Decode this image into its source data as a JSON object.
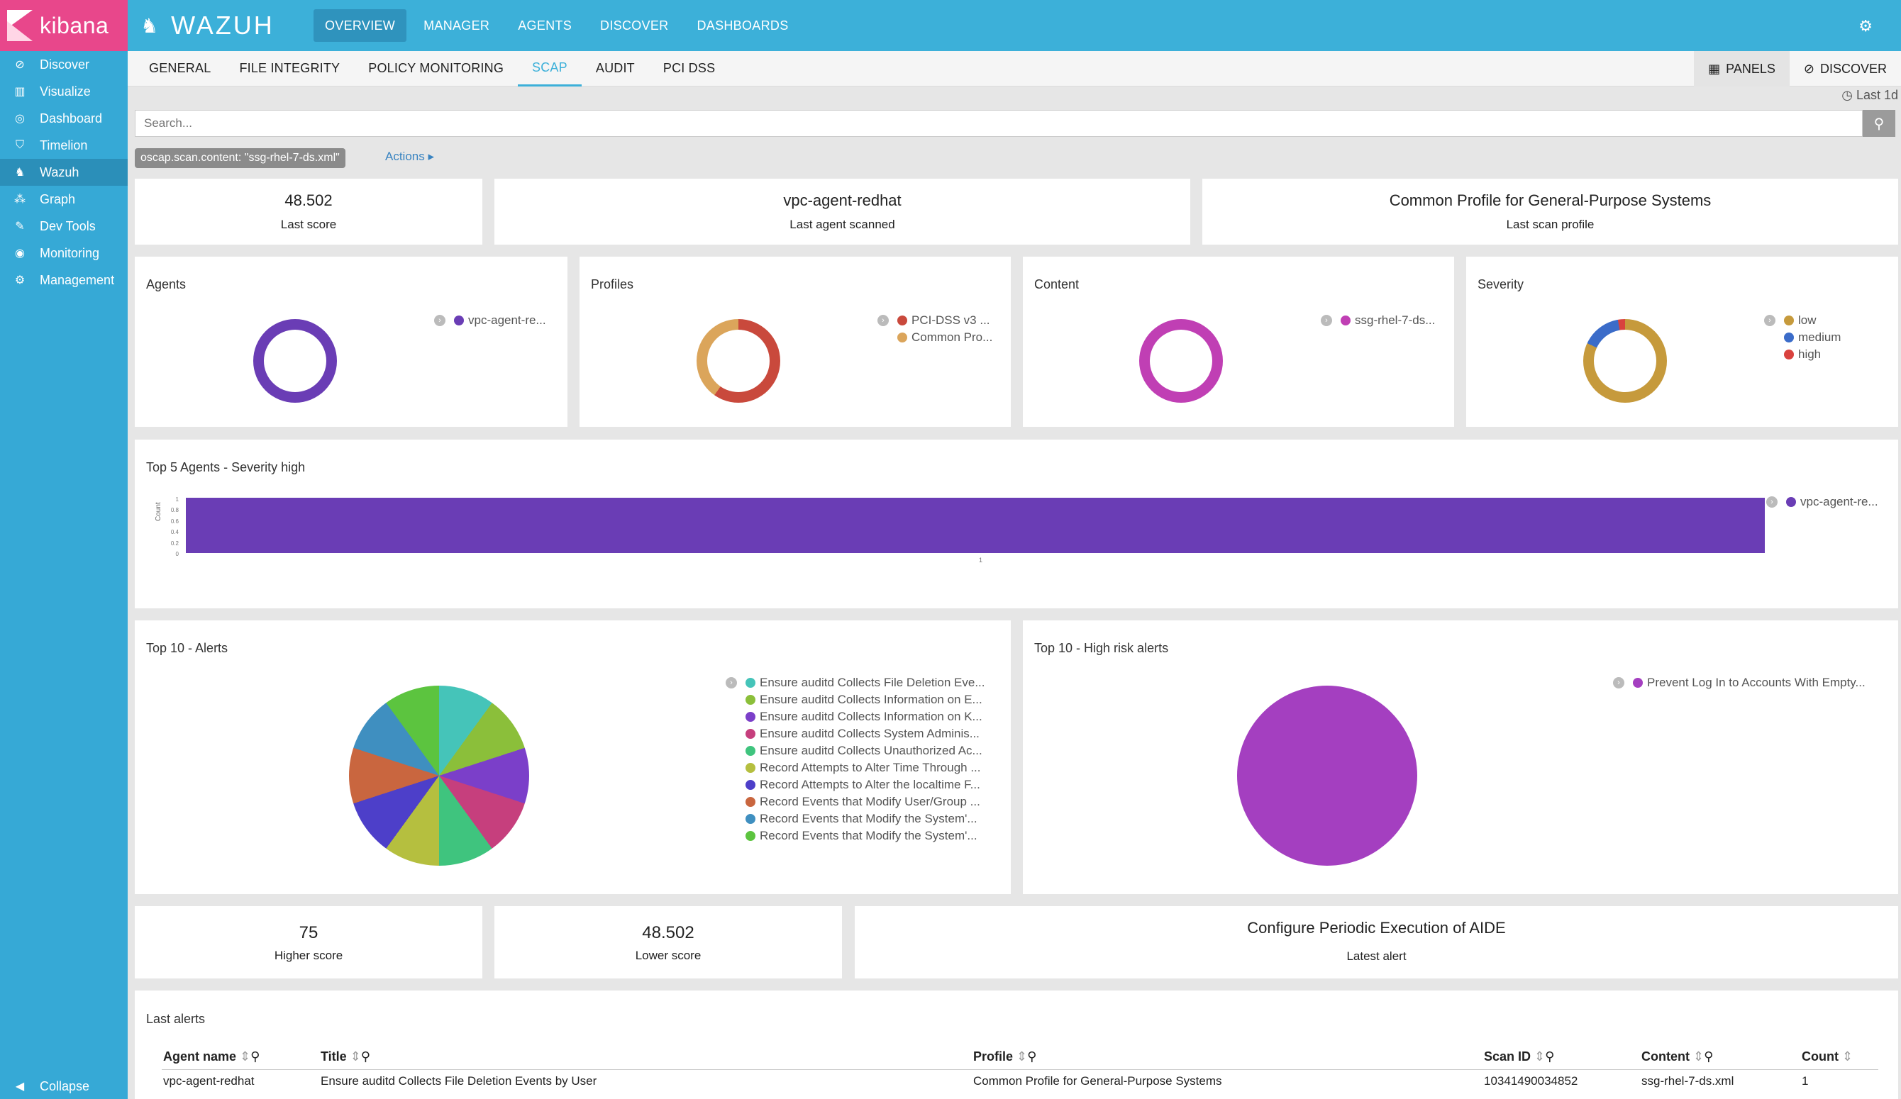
{
  "sidebar": {
    "brand": "kibana",
    "items": [
      {
        "label": "Discover",
        "icon": "compass-icon"
      },
      {
        "label": "Visualize",
        "icon": "bar-chart-icon"
      },
      {
        "label": "Dashboard",
        "icon": "dashboard-icon"
      },
      {
        "label": "Timelion",
        "icon": "shield-icon"
      },
      {
        "label": "Wazuh",
        "icon": "wazuh-icon"
      },
      {
        "label": "Graph",
        "icon": "graph-icon"
      },
      {
        "label": "Dev Tools",
        "icon": "wrench-icon"
      },
      {
        "label": "Monitoring",
        "icon": "eye-icon"
      },
      {
        "label": "Management",
        "icon": "gear-icon"
      }
    ],
    "active": "Wazuh",
    "collapse": "Collapse"
  },
  "topbar": {
    "logo": "WAZUH",
    "tabs": [
      "OVERVIEW",
      "MANAGER",
      "AGENTS",
      "DISCOVER",
      "DASHBOARDS"
    ],
    "active": "OVERVIEW"
  },
  "subnav": {
    "tabs": [
      "GENERAL",
      "FILE INTEGRITY",
      "POLICY MONITORING",
      "SCAP",
      "AUDIT",
      "PCI DSS"
    ],
    "active": "SCAP",
    "panels_label": "PANELS",
    "discover_label": "DISCOVER"
  },
  "time": "Last 1d",
  "search": {
    "placeholder": "Search..."
  },
  "filter": {
    "pill": "oscap.scan.content: \"ssg-rhel-7-ds.xml\"",
    "actions": "Actions"
  },
  "metrics_top": [
    {
      "value": "48.502",
      "label": "Last score"
    },
    {
      "value": "vpc-agent-redhat",
      "label": "Last agent scanned"
    },
    {
      "value": "Common Profile for General-Purpose Systems",
      "label": "Last scan profile"
    }
  ],
  "donuts": {
    "agents": {
      "title": "Agents",
      "legend": [
        {
          "label": "vpc-agent-re...",
          "color": "#6a3db5"
        }
      ]
    },
    "profiles": {
      "title": "Profiles",
      "legend": [
        {
          "label": "PCI-DSS v3 ...",
          "color": "#c9493c"
        },
        {
          "label": "Common Pro...",
          "color": "#dba55b"
        }
      ]
    },
    "content": {
      "title": "Content",
      "legend": [
        {
          "label": "ssg-rhel-7-ds...",
          "color": "#c03fb4"
        }
      ]
    },
    "severity": {
      "title": "Severity",
      "legend": [
        {
          "label": "low",
          "color": "#c69a3c"
        },
        {
          "label": "medium",
          "color": "#3b6cc9"
        },
        {
          "label": "high",
          "color": "#d9423e"
        }
      ]
    }
  },
  "top5": {
    "title": "Top 5 Agents - Severity high",
    "ylabel": "Count",
    "ticks": [
      "1",
      "0.8",
      "0.6",
      "0.4",
      "0.2",
      "0"
    ],
    "xtick": "1",
    "legend": [
      {
        "label": "vpc-agent-re...",
        "color": "#6a3db5"
      }
    ]
  },
  "top10": {
    "title": "Top 10 - Alerts",
    "legend": [
      {
        "label": "Ensure auditd Collects File Deletion Eve...",
        "color": "#45c4b9"
      },
      {
        "label": "Ensure auditd Collects Information on E...",
        "color": "#8bbf3a"
      },
      {
        "label": "Ensure auditd Collects Information on K...",
        "color": "#7b3fc9"
      },
      {
        "label": "Ensure auditd Collects System Adminis...",
        "color": "#c63f7d"
      },
      {
        "label": "Ensure auditd Collects Unauthorized Ac...",
        "color": "#3fc47e"
      },
      {
        "label": "Record Attempts to Alter Time Through ...",
        "color": "#b5bf3f"
      },
      {
        "label": "Record Attempts to Alter the localtime F...",
        "color": "#4d3fc9"
      },
      {
        "label": "Record Events that Modify User/Group ...",
        "color": "#c9663f"
      },
      {
        "label": "Record Events that Modify the System'...",
        "color": "#3f8fc0"
      },
      {
        "label": "Record Events that Modify the System'...",
        "color": "#5cc43f"
      }
    ]
  },
  "highrisk": {
    "title": "Top 10 - High risk alerts",
    "legend": [
      {
        "label": "Prevent Log In to Accounts With Empty...",
        "color": "#a43fc0"
      }
    ]
  },
  "metrics_bottom": [
    {
      "value": "75",
      "label": "Higher score"
    },
    {
      "value": "48.502",
      "label": "Lower score"
    },
    {
      "value": "Configure Periodic Execution of AIDE",
      "label": "Latest alert"
    }
  ],
  "alerts_table": {
    "title": "Last alerts",
    "columns": [
      "Agent name",
      "Title",
      "Profile",
      "Scan ID",
      "Content",
      "Count"
    ],
    "rows": [
      [
        "vpc-agent-redhat",
        "Ensure auditd Collects File Deletion Events by User",
        "Common Profile for General-Purpose Systems",
        "10341490034852",
        "ssg-rhel-7-ds.xml",
        "1"
      ]
    ]
  }
}
